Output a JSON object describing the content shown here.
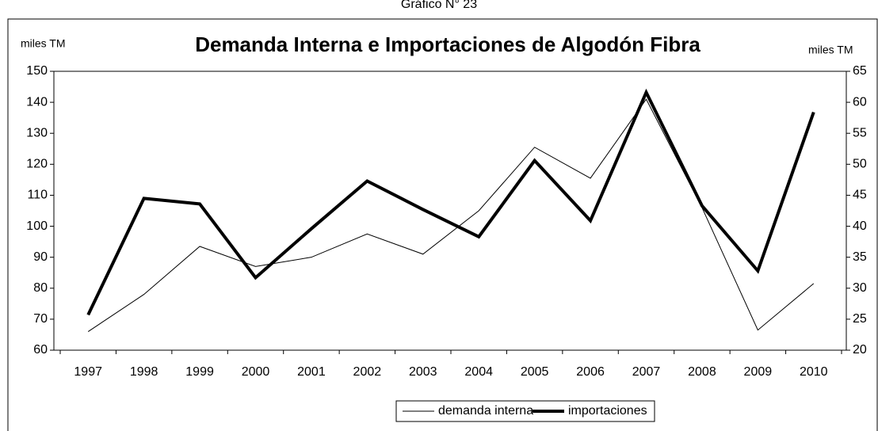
{
  "caption": "Gráfico N° 23",
  "chart_data": {
    "type": "line",
    "title": "Demanda Interna e Importaciones de Algodón Fibra",
    "y_label": "miles TM",
    "y2_label": "miles TM",
    "categories": [
      "1997",
      "1998",
      "1999",
      "2000",
      "2001",
      "2002",
      "2003",
      "2004",
      "2005",
      "2006",
      "2007",
      "2008",
      "2009",
      "2010"
    ],
    "series": [
      {
        "name": "demanda interna",
        "color": "#000000",
        "width": 1,
        "values": [
          66,
          78,
          93.5,
          87,
          90,
          97.5,
          91,
          105,
          125.5,
          115.5,
          141,
          106,
          66.5,
          81.5
        ]
      },
      {
        "name": "importaciones",
        "color": "#000000",
        "width": 4,
        "axis": "y2",
        "values": [
          25.7,
          44.5,
          43.6,
          31.7,
          39.6,
          47.3,
          42.7,
          38.3,
          50.6,
          40.9,
          61.6,
          43.3,
          32.8,
          58.4
        ]
      }
    ],
    "ylim": [
      60,
      150
    ],
    "yticks": [
      60,
      70,
      80,
      90,
      100,
      110,
      120,
      130,
      140,
      150
    ],
    "y2lim": [
      20,
      65
    ],
    "y2ticks": [
      20,
      25,
      30,
      35,
      40,
      45,
      50,
      55,
      60,
      65
    ],
    "legend": "bottom"
  }
}
